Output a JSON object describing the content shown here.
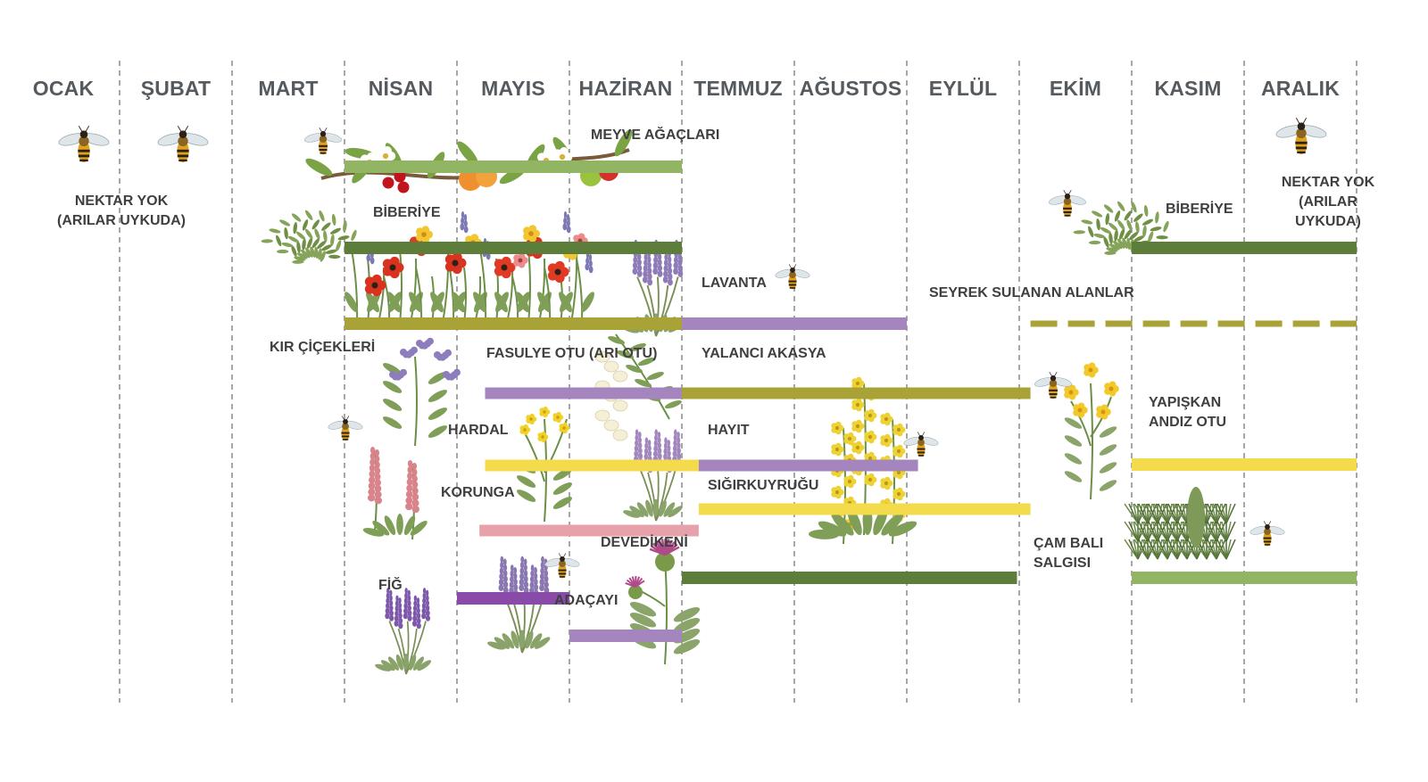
{
  "months": [
    "OCAK",
    "ŞUBAT",
    "MART",
    "NİSAN",
    "MAYIS",
    "HAZİRAN",
    "TEMMUZ",
    "AĞUSTOS",
    "EYLÜL",
    "EKİM",
    "KASIM",
    "ARALIK"
  ],
  "notes": {
    "no_nectar_left": "NEKTAR YOK\n(ARILAR UYKUDA)",
    "no_nectar_right": "NEKTAR YOK\n(ARILAR\nUYKUDA)"
  },
  "plants": [
    {
      "id": "meyve-agaclari",
      "label": "MEYVE AĞAÇLARI",
      "color": "#92b563",
      "icon": "fruit-branch-icon",
      "style": "solid",
      "segments": [
        {
          "start": 3.0,
          "end": 6.0
        }
      ]
    },
    {
      "id": "biberiye",
      "label": "BİBERİYE",
      "label2": "BİBERİYE",
      "color": "#5d7e3a",
      "icon": "rosemary-icon",
      "style": "solid",
      "segments": [
        {
          "start": 3.0,
          "end": 6.0
        },
        {
          "start": 10.0,
          "end": 12.0
        }
      ]
    },
    {
      "id": "kir-cicekleri",
      "label": "KIR ÇİÇEKLERİ",
      "color": "#a9a337",
      "icon": "wildflowers-icon",
      "style": "solid",
      "segments": [
        {
          "start": 3.0,
          "end": 6.0
        }
      ]
    },
    {
      "id": "lavanta",
      "label": "LAVANTA",
      "color": "#a585bd",
      "icon": "lavender-icon",
      "style": "solid",
      "segments": [
        {
          "start": 6.0,
          "end": 8.0
        }
      ]
    },
    {
      "id": "seyrek-sulanan",
      "label": "SEYREK SULANAN ALANLAR",
      "color": "#a9a337",
      "icon": "",
      "style": "dashed",
      "segments": [
        {
          "start": 9.1,
          "end": 12.0
        }
      ]
    },
    {
      "id": "fasulye-otu",
      "label": "FASULYE OTU (ARI OTU)",
      "color": "#a585bd",
      "icon": "phacelia-icon",
      "style": "solid",
      "segments": [
        {
          "start": 4.25,
          "end": 6.0
        }
      ]
    },
    {
      "id": "yalanci-akasya",
      "label": "YALANCI AKASYA",
      "color": "#a9a337",
      "icon": "acacia-icon",
      "style": "solid",
      "segments": [
        {
          "start": 6.0,
          "end": 9.1
        }
      ]
    },
    {
      "id": "hardal",
      "label": "HARDAL",
      "color": "#f4db4c",
      "icon": "mustard-icon",
      "style": "solid",
      "segments": [
        {
          "start": 4.25,
          "end": 6.15
        }
      ]
    },
    {
      "id": "hayit",
      "label": "HAYIT",
      "color": "#a585bd",
      "icon": "chaste-tree-icon",
      "style": "solid",
      "segments": [
        {
          "start": 6.15,
          "end": 8.1
        }
      ]
    },
    {
      "id": "yapiskan-andiz",
      "label": "YAPIŞKAN\nANDIZ OTU",
      "color": "#f4db4c",
      "icon": "yellow-flower-icon",
      "style": "solid",
      "segments": [
        {
          "start": 10.0,
          "end": 12.0
        }
      ]
    },
    {
      "id": "sigirkuyrugu",
      "label": "SIĞIRKUYRUĞU",
      "color": "#f4db4c",
      "icon": "mullein-icon",
      "style": "solid",
      "segments": [
        {
          "start": 6.15,
          "end": 9.1
        }
      ]
    },
    {
      "id": "korunga",
      "label": "KORUNGA",
      "color": "#e6a1ab",
      "icon": "sainfoin-icon",
      "style": "solid",
      "segments": [
        {
          "start": 4.2,
          "end": 6.15
        }
      ]
    },
    {
      "id": "devedikeni",
      "label": "DEVEDİKENİ",
      "color": "#5d7e3a",
      "icon": "thistle-icon",
      "style": "solid",
      "segments": [
        {
          "start": 6.0,
          "end": 8.98
        }
      ]
    },
    {
      "id": "cam-bali",
      "label": "ÇAM BALI\nSALGISI",
      "color": "#92b563",
      "icon": "pine-icon",
      "style": "solid",
      "segments": [
        {
          "start": 10.0,
          "end": 12.0
        }
      ]
    },
    {
      "id": "fig",
      "label": "FİĞ",
      "color": "#8a4aa8",
      "icon": "vetch-icon",
      "style": "solid",
      "segments": [
        {
          "start": 4.0,
          "end": 5.0
        }
      ]
    },
    {
      "id": "adacayi",
      "label": "ADAÇAYI",
      "color": "#a585bd",
      "icon": "sage-icon",
      "style": "solid",
      "segments": [
        {
          "start": 5.0,
          "end": 6.0
        }
      ]
    }
  ],
  "icons": [
    "bee-icon"
  ]
}
